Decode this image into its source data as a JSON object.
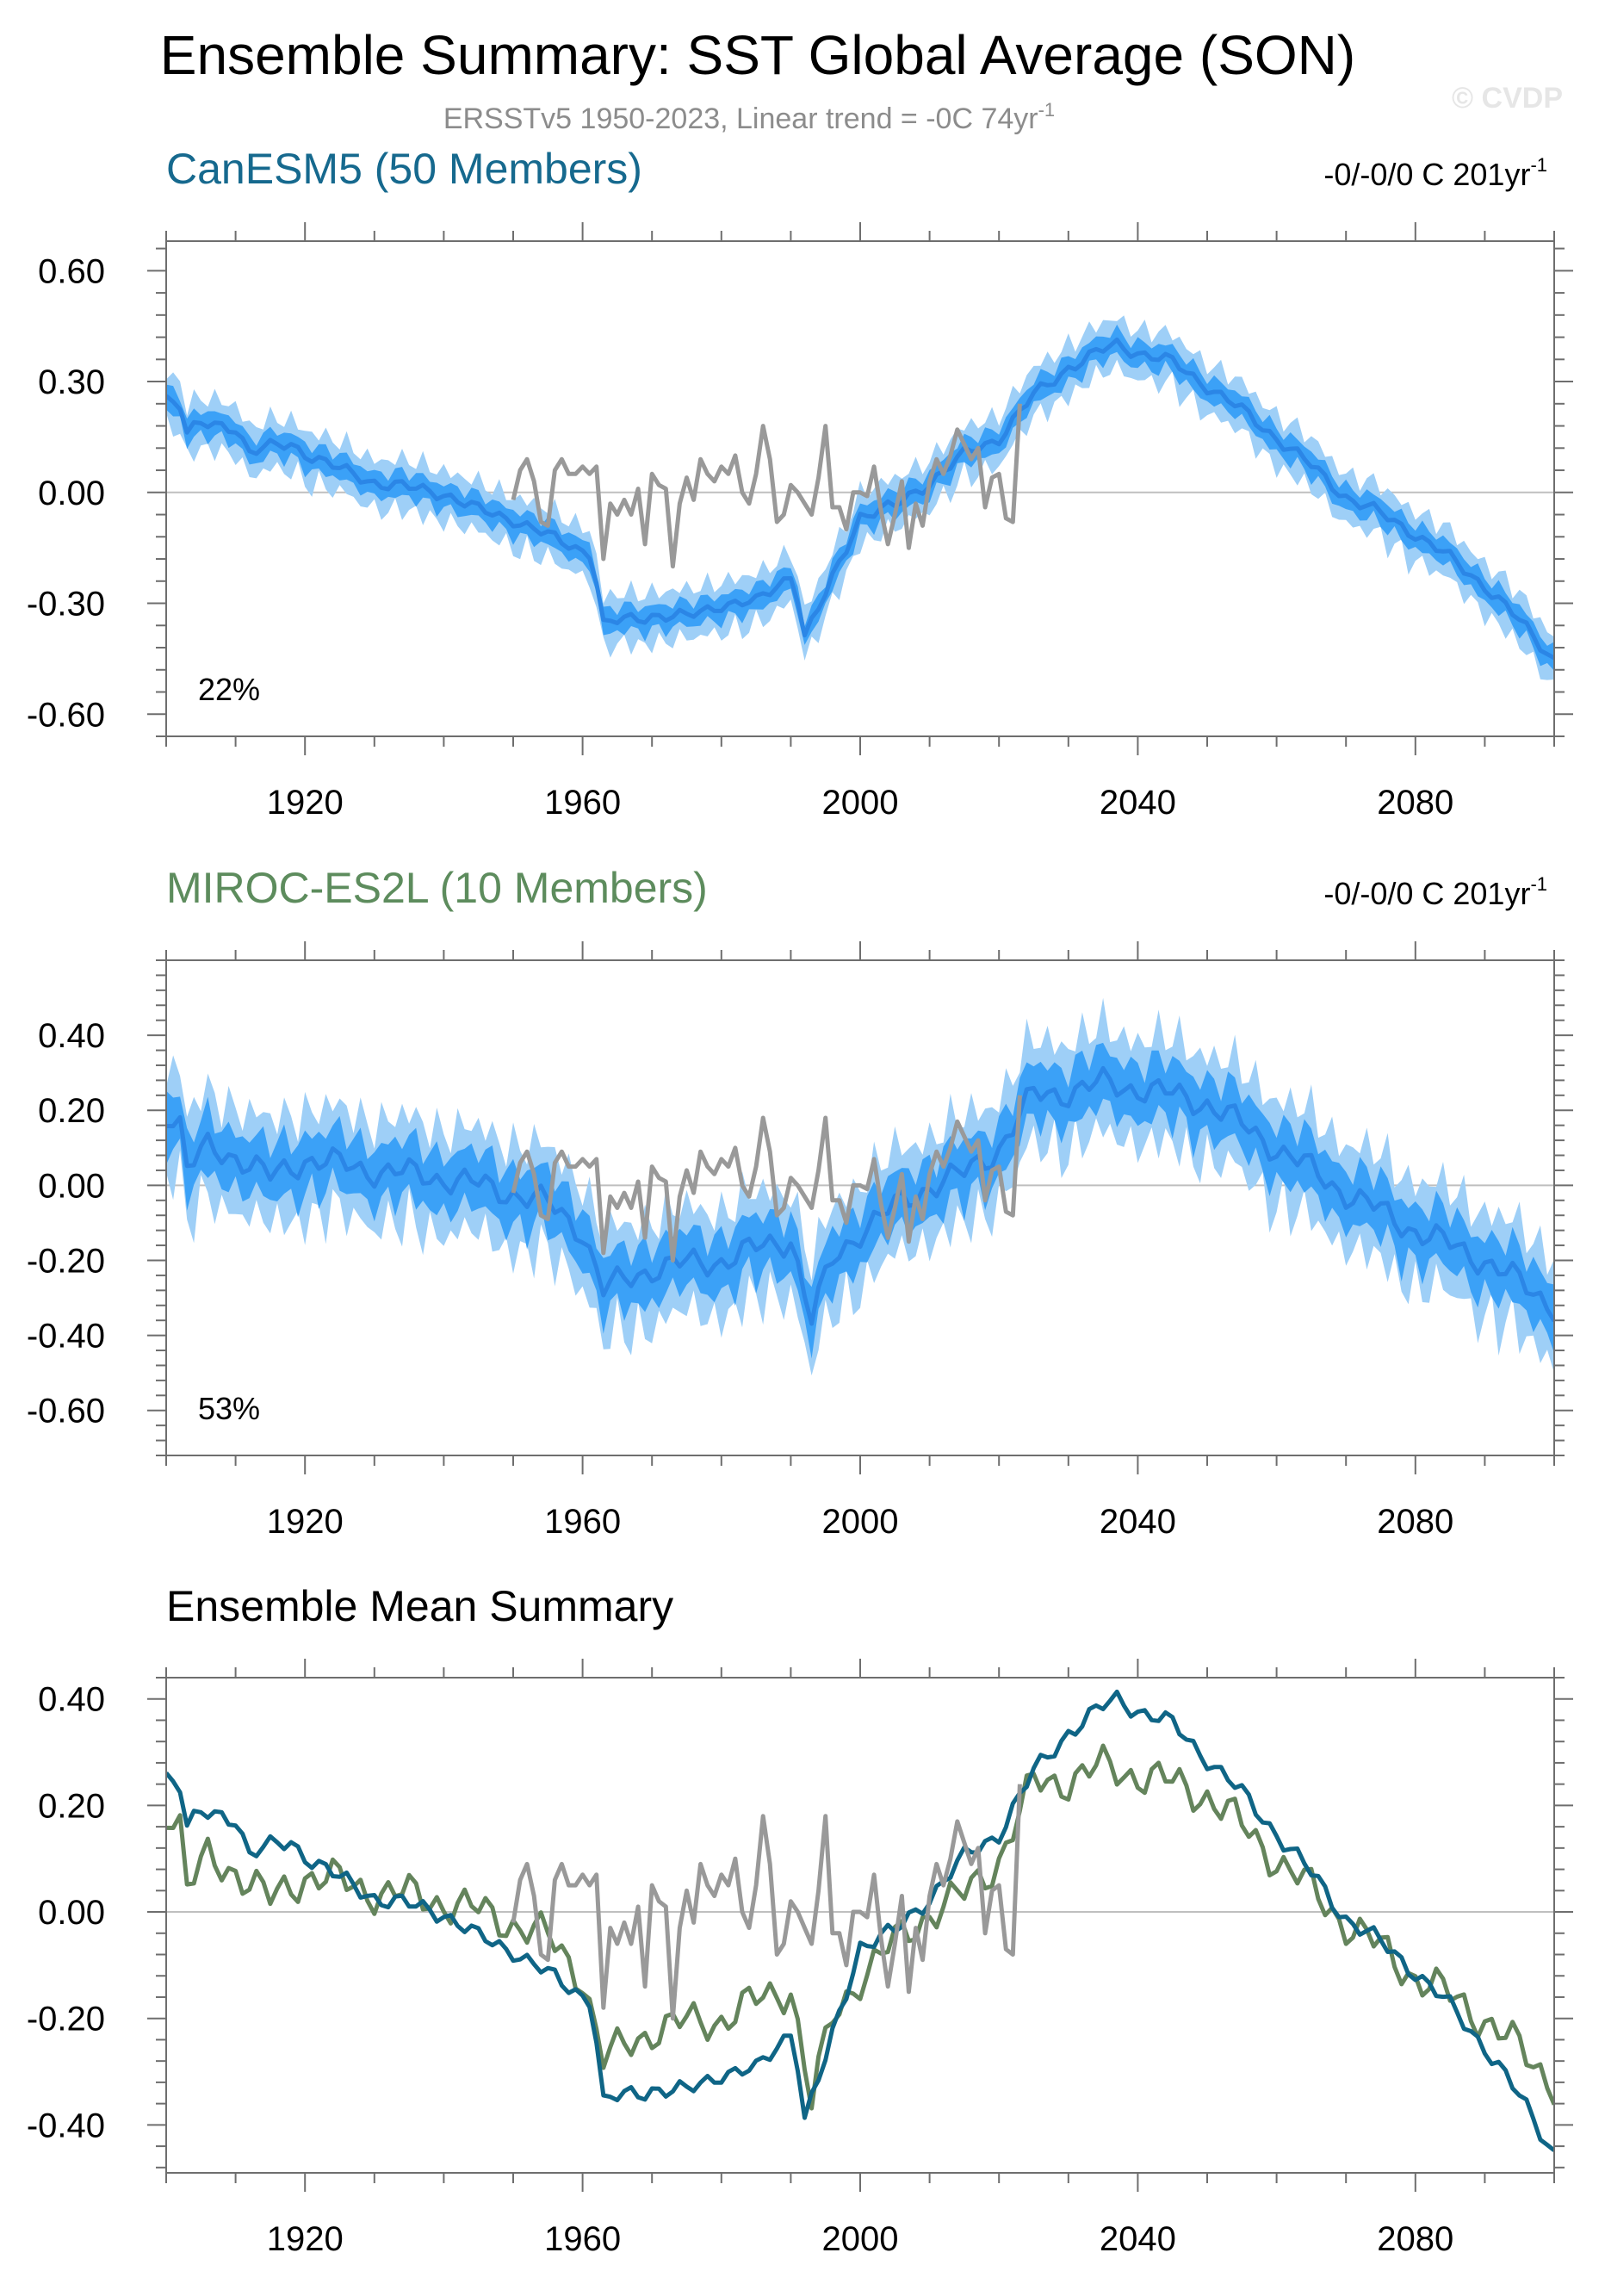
{
  "page": {
    "title": "Ensemble Summary: SST Global Average (SON)",
    "subtitle_main": "ERSSTv5 1950-2023, Linear trend = -0C 74yr",
    "subtitle_sup": "-1",
    "watermark": "© CVDP"
  },
  "colors": {
    "canesm_title": "#16698e",
    "miroc_title": "#5d8c5d",
    "band_outer": "#9ecff7",
    "band_inner": "#3ba1f7",
    "band_mean": "#2b86e6",
    "obs": "#999999",
    "canesm_line": "#0f6586",
    "miroc_line": "#64845c",
    "zero_line": "#bfbfbf"
  },
  "chart_data": [
    {
      "type": "area",
      "panel": "CanESM5",
      "title": "CanESM5 (50 Members)",
      "trend_text": "-0/-0/0 C 201yr",
      "trend_sup": "-1",
      "annotation": "22%",
      "x_range": [
        1900,
        2100
      ],
      "y_range": [
        -0.66,
        0.68
      ],
      "x_ticks": [
        1920,
        1960,
        2000,
        2040,
        2080
      ],
      "y_ticks": [
        "0.60",
        "0.30",
        "0.00",
        "-0.30",
        "-0.60"
      ],
      "y_tick_values": [
        0.6,
        0.3,
        0.0,
        -0.3,
        -0.6
      ],
      "mean_knots": [
        [
          1900,
          0.26
        ],
        [
          1902,
          0.24
        ],
        [
          1903,
          0.16
        ],
        [
          1905,
          0.18
        ],
        [
          1910,
          0.18
        ],
        [
          1912,
          0.11
        ],
        [
          1918,
          0.13
        ],
        [
          1925,
          0.06
        ],
        [
          1930,
          0.03
        ],
        [
          1935,
          0.01
        ],
        [
          1940,
          0.0
        ],
        [
          1945,
          -0.05
        ],
        [
          1950,
          -0.07
        ],
        [
          1955,
          -0.12
        ],
        [
          1961,
          -0.16
        ],
        [
          1962,
          -0.24
        ],
        [
          1963,
          -0.36
        ],
        [
          1970,
          -0.33
        ],
        [
          1975,
          -0.34
        ],
        [
          1980,
          -0.3
        ],
        [
          1985,
          -0.3
        ],
        [
          1990,
          -0.22
        ],
        [
          1991,
          -0.28
        ],
        [
          1992,
          -0.39
        ],
        [
          1995,
          -0.28
        ],
        [
          2000,
          -0.06
        ],
        [
          2005,
          -0.04
        ],
        [
          2010,
          0.03
        ],
        [
          2015,
          0.1
        ],
        [
          2020,
          0.15
        ],
        [
          2025,
          0.26
        ],
        [
          2030,
          0.34
        ],
        [
          2037,
          0.4
        ],
        [
          2045,
          0.35
        ],
        [
          2050,
          0.29
        ],
        [
          2060,
          0.15
        ],
        [
          2070,
          -0.01
        ],
        [
          2080,
          -0.11
        ],
        [
          2090,
          -0.25
        ],
        [
          2100,
          -0.45
        ]
      ],
      "mean_noise": 0.022,
      "inner_halfwidth": 0.033,
      "outer_halfwidth": 0.068,
      "legend": []
    },
    {
      "type": "area",
      "panel": "MIROC-ES2L",
      "title": "MIROC-ES2L (10 Members)",
      "trend_text": "-0/-0/0 C 201yr",
      "trend_sup": "-1",
      "annotation": "53%",
      "x_range": [
        1900,
        2100
      ],
      "y_range": [
        -0.72,
        0.6
      ],
      "x_ticks": [
        1920,
        1960,
        2000,
        2040,
        2080
      ],
      "y_ticks": [
        "0.40",
        "0.20",
        "0.00",
        "-0.20",
        "-0.40",
        "-0.60"
      ],
      "y_tick_values": [
        0.4,
        0.2,
        0.0,
        -0.2,
        -0.4,
        -0.6
      ],
      "mean_knots": [
        [
          1900,
          0.2
        ],
        [
          1902,
          0.16
        ],
        [
          1903,
          0.04
        ],
        [
          1906,
          0.1
        ],
        [
          1910,
          0.08
        ],
        [
          1915,
          0.02
        ],
        [
          1920,
          0.07
        ],
        [
          1930,
          0.04
        ],
        [
          1940,
          0.02
        ],
        [
          1950,
          -0.02
        ],
        [
          1955,
          -0.05
        ],
        [
          1960,
          -0.12
        ],
        [
          1963,
          -0.28
        ],
        [
          1970,
          -0.22
        ],
        [
          1980,
          -0.2
        ],
        [
          1990,
          -0.14
        ],
        [
          1993,
          -0.36
        ],
        [
          1996,
          -0.2
        ],
        [
          2000,
          -0.12
        ],
        [
          2005,
          -0.06
        ],
        [
          2010,
          0.0
        ],
        [
          2015,
          0.03
        ],
        [
          2020,
          0.1
        ],
        [
          2025,
          0.24
        ],
        [
          2030,
          0.25
        ],
        [
          2035,
          0.27
        ],
        [
          2040,
          0.26
        ],
        [
          2050,
          0.22
        ],
        [
          2060,
          0.1
        ],
        [
          2070,
          -0.02
        ],
        [
          2080,
          -0.12
        ],
        [
          2090,
          -0.2
        ],
        [
          2100,
          -0.32
        ]
      ],
      "mean_noise": 0.045,
      "inner_halfwidth": 0.075,
      "outer_halfwidth": 0.14,
      "legend": []
    },
    {
      "type": "line",
      "panel": "Ensemble Mean",
      "title": "Ensemble Mean Summary",
      "x_range": [
        1900,
        2100
      ],
      "y_range": [
        -0.49,
        0.44
      ],
      "x_ticks": [
        1920,
        1960,
        2000,
        2040,
        2080
      ],
      "y_ticks": [
        "0.40",
        "0.20",
        "0.00",
        "-0.20",
        "-0.40"
      ],
      "y_tick_values": [
        0.4,
        0.2,
        0.0,
        -0.2,
        -0.4
      ],
      "series": [
        {
          "name": "",
          "style": "canesm_mean"
        },
        {
          "name": "",
          "style": "miroc_mean"
        }
      ]
    }
  ],
  "observations": {
    "name": "",
    "years_start": 1950,
    "values": [
      -0.02,
      0.06,
      0.09,
      0.03,
      -0.08,
      -0.09,
      0.06,
      0.09,
      0.05,
      0.05,
      0.07,
      0.05,
      0.07,
      -0.18,
      -0.03,
      -0.06,
      -0.02,
      -0.06,
      0.01,
      -0.14,
      0.05,
      0.02,
      0.01,
      -0.2,
      -0.03,
      0.04,
      -0.02,
      0.09,
      0.05,
      0.03,
      0.07,
      0.05,
      0.1,
      -0.0,
      -0.03,
      0.05,
      0.18,
      0.09,
      -0.08,
      -0.06,
      0.02,
      0.0,
      -0.03,
      -0.06,
      0.04,
      0.18,
      -0.04,
      -0.04,
      -0.1,
      0.0,
      0.0,
      -0.01,
      0.07,
      -0.05,
      -0.14,
      -0.06,
      0.03,
      -0.15,
      -0.03,
      -0.09,
      0.03,
      0.09,
      0.05,
      0.1,
      0.17,
      0.13,
      0.09,
      0.12,
      -0.04,
      0.04,
      0.05,
      -0.07,
      -0.08,
      0.24
    ]
  }
}
